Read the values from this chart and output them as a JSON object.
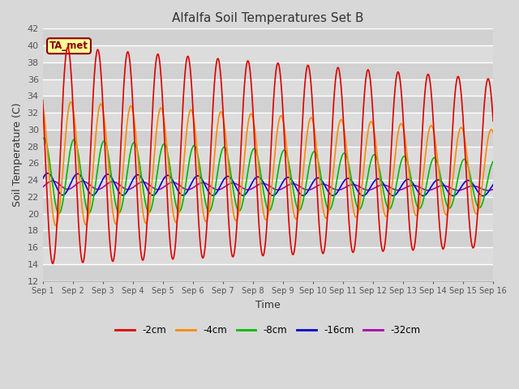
{
  "title": "Alfalfa Soil Temperatures Set B",
  "xlabel": "Time",
  "ylabel": "Soil Temperature (C)",
  "ylim": [
    12,
    42
  ],
  "yticks": [
    12,
    14,
    16,
    18,
    20,
    22,
    24,
    26,
    28,
    30,
    32,
    34,
    36,
    38,
    40,
    42
  ],
  "background_color": "#d8d8d8",
  "plot_bg_color": "#d8d8d8",
  "annotation_label": "TA_met",
  "annotation_color": "#8b0000",
  "annotation_bg": "#ffff99",
  "series": {
    "2cm": {
      "color": "#dd0000"
    },
    "4cm": {
      "color": "#ff8800"
    },
    "8cm": {
      "color": "#00bb00"
    },
    "16cm": {
      "color": "#0000cc"
    },
    "32cm": {
      "color": "#aa00aa"
    }
  },
  "legend_labels": [
    "-2cm",
    "-4cm",
    "-8cm",
    "-16cm",
    "-32cm"
  ],
  "legend_colors": [
    "#dd0000",
    "#ff8800",
    "#00bb00",
    "#0000cc",
    "#aa00aa"
  ],
  "n_days": 15,
  "samples_per_day": 96
}
